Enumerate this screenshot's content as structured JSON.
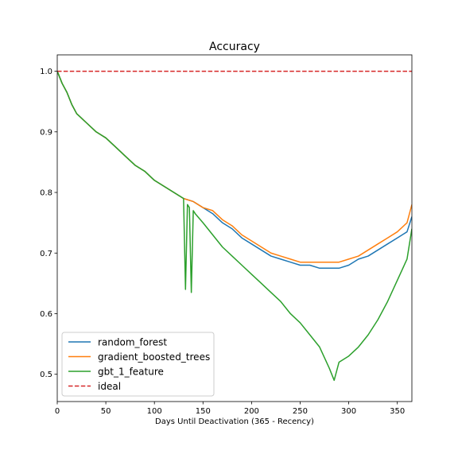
{
  "chart_data": {
    "type": "line",
    "title": "Accuracy",
    "xlabel": "Days Until Deactivation (365 - Recency)",
    "ylabel": "",
    "xlim": [
      0,
      365
    ],
    "ylim": [
      0.455,
      1.027
    ],
    "xticks": [
      0,
      50,
      100,
      150,
      200,
      250,
      300,
      350
    ],
    "yticks": [
      0.5,
      0.6,
      0.7,
      0.8,
      0.9,
      1.0
    ],
    "xtick_labels": [
      "0",
      "50",
      "100",
      "150",
      "200",
      "250",
      "300",
      "350"
    ],
    "ytick_labels": [
      "0.5",
      "0.6",
      "0.7",
      "0.8",
      "0.9",
      "1.0"
    ],
    "grid": false,
    "legend_position": "lower-left",
    "series": [
      {
        "name": "random_forest",
        "color": "#1f77b4",
        "x": [
          0,
          5,
          10,
          15,
          20,
          30,
          40,
          50,
          60,
          70,
          80,
          90,
          100,
          110,
          120,
          130,
          140,
          150,
          160,
          170,
          180,
          190,
          200,
          210,
          220,
          230,
          240,
          250,
          260,
          270,
          280,
          290,
          300,
          310,
          320,
          330,
          340,
          350,
          360,
          365
        ],
        "y": [
          1.0,
          0.98,
          0.965,
          0.945,
          0.93,
          0.915,
          0.9,
          0.89,
          0.875,
          0.86,
          0.845,
          0.835,
          0.82,
          0.81,
          0.8,
          0.79,
          0.785,
          0.775,
          0.765,
          0.75,
          0.74,
          0.725,
          0.715,
          0.705,
          0.695,
          0.69,
          0.685,
          0.68,
          0.68,
          0.675,
          0.675,
          0.675,
          0.68,
          0.69,
          0.695,
          0.705,
          0.715,
          0.725,
          0.735,
          0.76
        ]
      },
      {
        "name": "gradient_boosted_trees",
        "color": "#ff7f0e",
        "x": [
          0,
          5,
          10,
          15,
          20,
          30,
          40,
          50,
          60,
          70,
          80,
          90,
          100,
          110,
          120,
          130,
          140,
          150,
          160,
          170,
          180,
          190,
          200,
          210,
          220,
          230,
          240,
          250,
          260,
          270,
          280,
          290,
          300,
          310,
          320,
          330,
          340,
          350,
          360,
          365
        ],
        "y": [
          1.0,
          0.98,
          0.965,
          0.945,
          0.93,
          0.915,
          0.9,
          0.89,
          0.875,
          0.86,
          0.845,
          0.835,
          0.82,
          0.81,
          0.8,
          0.79,
          0.785,
          0.775,
          0.77,
          0.755,
          0.745,
          0.73,
          0.72,
          0.71,
          0.7,
          0.695,
          0.69,
          0.685,
          0.685,
          0.685,
          0.685,
          0.685,
          0.69,
          0.695,
          0.705,
          0.715,
          0.725,
          0.735,
          0.75,
          0.78
        ]
      },
      {
        "name": "gbt_1_feature",
        "color": "#2ca02c",
        "x": [
          0,
          5,
          10,
          15,
          20,
          30,
          40,
          50,
          60,
          70,
          80,
          90,
          100,
          110,
          120,
          130,
          132,
          134,
          136,
          138,
          140,
          142,
          150,
          160,
          170,
          180,
          190,
          200,
          210,
          220,
          230,
          240,
          250,
          260,
          270,
          280,
          285,
          290,
          300,
          310,
          320,
          330,
          340,
          350,
          360,
          365
        ],
        "y": [
          1.0,
          0.98,
          0.965,
          0.945,
          0.93,
          0.915,
          0.9,
          0.89,
          0.875,
          0.86,
          0.845,
          0.835,
          0.82,
          0.81,
          0.8,
          0.79,
          0.64,
          0.78,
          0.775,
          0.635,
          0.77,
          0.765,
          0.75,
          0.73,
          0.71,
          0.695,
          0.68,
          0.665,
          0.65,
          0.635,
          0.62,
          0.6,
          0.585,
          0.565,
          0.545,
          0.51,
          0.49,
          0.52,
          0.53,
          0.545,
          0.565,
          0.59,
          0.62,
          0.655,
          0.69,
          0.74
        ]
      },
      {
        "name": "ideal",
        "color": "#d62728",
        "style": "dashed",
        "x": [
          0,
          365
        ],
        "y": [
          1.0,
          1.0
        ]
      }
    ]
  }
}
